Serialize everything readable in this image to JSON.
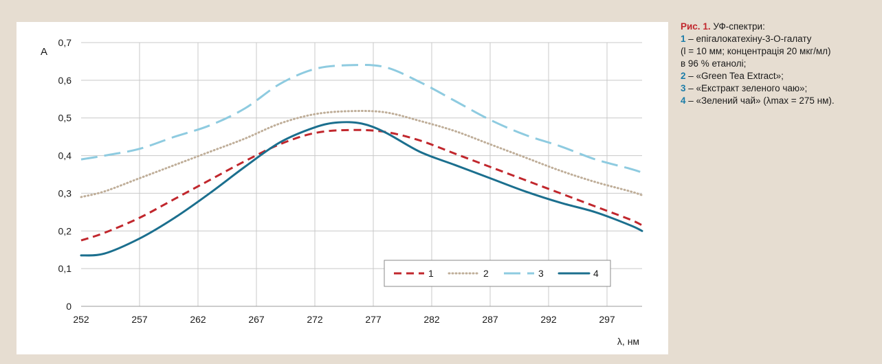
{
  "chart_data": {
    "type": "line",
    "ylabel": "A",
    "xlabel": "λ, нм",
    "xlim": [
      252,
      300
    ],
    "ylim": [
      0,
      0.7
    ],
    "x_ticks": [
      252,
      257,
      262,
      267,
      272,
      277,
      282,
      287,
      292,
      297
    ],
    "y_ticks": [
      0,
      0.1,
      0.2,
      0.3,
      0.4,
      0.5,
      0.6,
      0.7
    ],
    "y_tick_labels": [
      "0",
      "0,1",
      "0,2",
      "0,3",
      "0,4",
      "0,5",
      "0,6",
      "0,7"
    ],
    "grid": true,
    "legend_position": "bottom-right",
    "series": [
      {
        "name": "1",
        "color": "#c1272d",
        "style": "dashed",
        "x": [
          252,
          254,
          257,
          260,
          263,
          266,
          269,
          272,
          275,
          278,
          281,
          284,
          287,
          290,
          293,
          296,
          299,
          300
        ],
        "y": [
          0.175,
          0.195,
          0.235,
          0.285,
          0.335,
          0.385,
          0.43,
          0.46,
          0.468,
          0.463,
          0.44,
          0.405,
          0.37,
          0.335,
          0.3,
          0.265,
          0.23,
          0.215
        ]
      },
      {
        "name": "2",
        "color": "#bfae99",
        "style": "dotted",
        "x": [
          252,
          254,
          257,
          260,
          263,
          266,
          269,
          272,
          275,
          278,
          281,
          284,
          287,
          290,
          293,
          296,
          299,
          300
        ],
        "y": [
          0.29,
          0.305,
          0.34,
          0.375,
          0.41,
          0.445,
          0.485,
          0.51,
          0.518,
          0.515,
          0.492,
          0.465,
          0.43,
          0.395,
          0.36,
          0.33,
          0.305,
          0.295
        ]
      },
      {
        "name": "3",
        "color": "#8ecbe0",
        "style": "longdash",
        "x": [
          252,
          254,
          257,
          260,
          263,
          266,
          269,
          272,
          275,
          278,
          281,
          284,
          287,
          290,
          293,
          296,
          299,
          300
        ],
        "y": [
          0.39,
          0.4,
          0.418,
          0.45,
          0.48,
          0.525,
          0.59,
          0.63,
          0.64,
          0.635,
          0.595,
          0.545,
          0.495,
          0.455,
          0.425,
          0.39,
          0.365,
          0.355
        ]
      },
      {
        "name": "4",
        "color": "#1b6f8e",
        "style": "solid",
        "x": [
          252,
          254,
          257,
          260,
          263,
          266,
          269,
          272,
          274,
          276,
          278,
          281,
          284,
          287,
          290,
          293,
          296,
          299,
          300
        ],
        "y": [
          0.135,
          0.14,
          0.18,
          0.235,
          0.3,
          0.37,
          0.435,
          0.475,
          0.488,
          0.485,
          0.462,
          0.41,
          0.375,
          0.34,
          0.305,
          0.275,
          0.25,
          0.215,
          0.2
        ]
      }
    ]
  },
  "caption": {
    "fig_label": "Рис. 1.",
    "title": " УФ-спектри:",
    "items": [
      {
        "num": "1",
        "text": " – епігалокатехіну-3-О-галату"
      },
      {
        "num": "",
        "text": "(l  =  10  мм; концентрація 20 мкг/мл)"
      },
      {
        "num": "",
        "text": "в 96  % етанолі;"
      },
      {
        "num": "2",
        "text": " – «Green Tea Extract»;"
      },
      {
        "num": "3",
        "text": " – «Екстракт зеленого чаю»;"
      },
      {
        "num": "4",
        "text": " – «Зелений чай» (λmax  =  275 нм)."
      }
    ]
  }
}
